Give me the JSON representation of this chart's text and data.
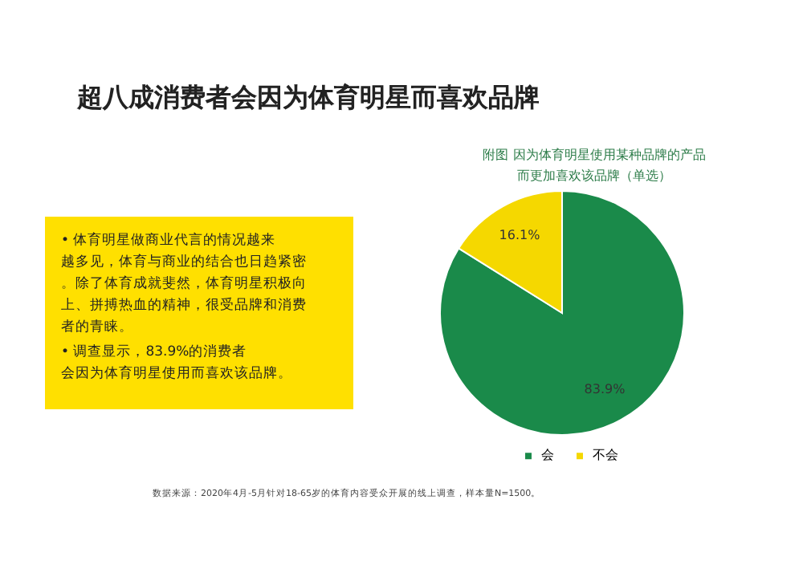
{
  "chart_data": {
    "type": "pie",
    "title": "超八成消费者会因为体育明星而喜欢品牌",
    "subtitle": "附图  因为体育明星使用某种品牌的产品而更加喜欢该品牌（单选）",
    "categories": [
      "会",
      "不会"
    ],
    "values": [
      83.9,
      16.1
    ],
    "colors": [
      "#1a8a4a",
      "#f5d800"
    ],
    "value_labels": [
      "83.9%",
      "16.1%"
    ],
    "legend": "bottom",
    "annotations": [
      "•  体育明星做商业代言的情况越来越多见，体育与商业的结合也日趋紧密。除了体育成就斐然，体育明星积极向上、拼搏热血的精神，很受品牌和消费者的青睐。",
      "•  调查显示，83.9%的消费者会因为体育明星使用而喜欢该品牌。",
      "数据来源：2020年4月-5月针对18-65岁的体育内容受众开展的线上调查，样本量N=1500。"
    ]
  }
}
